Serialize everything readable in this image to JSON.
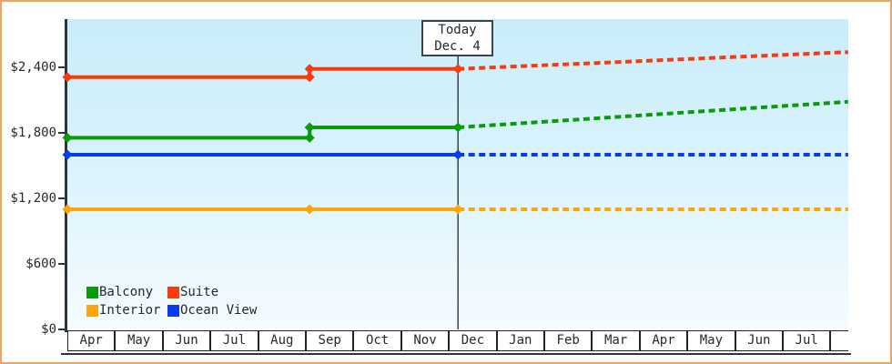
{
  "chart_data": {
    "type": "line",
    "title": "",
    "xlabel": "",
    "ylabel": "",
    "grid": false,
    "y_ticks": [
      {
        "label": "$0",
        "value": 0
      },
      {
        "label": "$600",
        "value": 600
      },
      {
        "label": "$1,200",
        "value": 1200
      },
      {
        "label": "$1,800",
        "value": 1800
      },
      {
        "label": "$2,400",
        "value": 2400
      }
    ],
    "ylim": [
      0,
      2840
    ],
    "x_months": [
      "Apr",
      "May",
      "Jun",
      "Jul",
      "Aug",
      "Sep",
      "Oct",
      "Nov",
      "Dec",
      "Jan",
      "Feb",
      "Mar",
      "Apr",
      "May",
      "Jun",
      "Jul",
      ""
    ],
    "today": {
      "line1": "Today",
      "line2": "Dec. 4",
      "month_index": 8.19
    },
    "series": [
      {
        "name": "Interior",
        "color": "#ffa50a",
        "solid": [
          [
            0,
            1100
          ],
          [
            8.19,
            1100
          ]
        ],
        "forecast": [
          [
            8.19,
            1100
          ],
          [
            16.37,
            1100
          ]
        ],
        "markers": [
          [
            0,
            1100
          ],
          [
            5.08,
            1100
          ],
          [
            8.19,
            1100
          ]
        ]
      },
      {
        "name": "Ocean View",
        "color": "#0a3bef",
        "solid": [
          [
            0,
            1600
          ],
          [
            8.19,
            1600
          ]
        ],
        "forecast": [
          [
            8.19,
            1600
          ],
          [
            16.37,
            1600
          ]
        ],
        "markers": [
          [
            0,
            1600
          ],
          [
            8.19,
            1600
          ]
        ]
      },
      {
        "name": "Balcony",
        "color": "#0a9b0a",
        "solid": [
          [
            0,
            1755
          ],
          [
            5.08,
            1755
          ],
          [
            5.08,
            1850
          ],
          [
            8.19,
            1850
          ]
        ],
        "forecast": [
          [
            8.19,
            1850
          ],
          [
            16.37,
            2085
          ]
        ],
        "markers": [
          [
            0,
            1755
          ],
          [
            5.08,
            1755
          ],
          [
            5.08,
            1850
          ],
          [
            8.19,
            1850
          ]
        ]
      },
      {
        "name": "Suite",
        "color": "#f93a0c",
        "solid": [
          [
            0,
            2310
          ],
          [
            5.08,
            2310
          ],
          [
            5.08,
            2385
          ],
          [
            8.19,
            2385
          ]
        ],
        "forecast": [
          [
            8.19,
            2385
          ],
          [
            16.37,
            2540
          ]
        ],
        "markers": [
          [
            0,
            2310
          ],
          [
            5.08,
            2310
          ],
          [
            5.08,
            2385
          ],
          [
            8.19,
            2385
          ]
        ]
      }
    ],
    "legend": {
      "position": "bottom-left-inside",
      "rows": [
        [
          "Balcony",
          "Suite"
        ],
        [
          "Interior",
          "Ocean View"
        ]
      ]
    }
  },
  "colors": {
    "frame_border": "#eda55e",
    "plot_bg_top": "#c9edfa",
    "plot_bg_bottom": "#f4fcff",
    "axis": "#2d3639",
    "text": "#232a2e"
  }
}
